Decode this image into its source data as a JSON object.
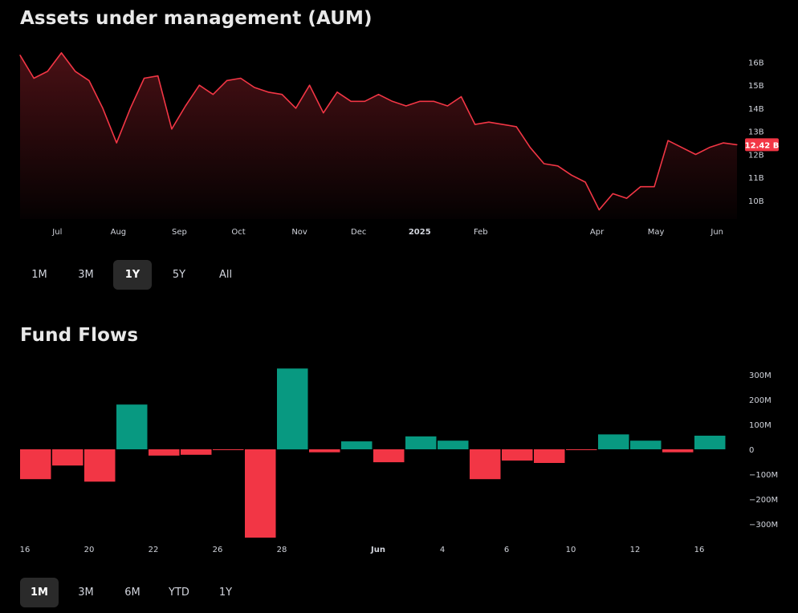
{
  "aum": {
    "title": "Assets under management (AUM)",
    "ranges": [
      "1M",
      "3M",
      "1Y",
      "5Y",
      "All"
    ],
    "active_range": "1Y"
  },
  "flows": {
    "title": "Fund Flows",
    "ranges": [
      "1M",
      "3M",
      "6M",
      "YTD",
      "1Y"
    ],
    "active_range": "1M"
  },
  "colors": {
    "line": "#f23645",
    "positive": "#089981",
    "negative": "#f23645",
    "text": "#d1d4dc",
    "background": "#000000"
  },
  "chart_data": [
    {
      "type": "area",
      "title": "Assets under management (AUM)",
      "unit": "B",
      "ylim": [
        9.2,
        16.5
      ],
      "y_ticks": [
        10,
        11,
        12,
        13,
        14,
        15,
        16
      ],
      "y_tick_labels": [
        "10B",
        "11B",
        "12B",
        "13B",
        "14B",
        "15B",
        "16B"
      ],
      "x_tick_labels": [
        "Jul",
        "Aug",
        "Sep",
        "Oct",
        "Nov",
        "Dec",
        "2025",
        "Feb",
        "Apr",
        "May",
        "Jun"
      ],
      "last_value_label": "12.42 B",
      "last_value": 12.42,
      "series": [
        {
          "x": [
            "2024-06-17",
            "2024-06-24",
            "2024-07-01",
            "2024-07-08",
            "2024-07-15",
            "2024-07-22",
            "2024-07-29",
            "2024-08-05",
            "2024-08-12",
            "2024-08-19",
            "2024-08-26",
            "2024-09-02",
            "2024-09-09",
            "2024-09-16",
            "2024-09-23",
            "2024-09-30",
            "2024-10-07",
            "2024-10-14",
            "2024-10-21",
            "2024-10-28",
            "2024-11-04",
            "2024-11-11",
            "2024-11-18",
            "2024-11-25",
            "2024-12-02",
            "2024-12-09",
            "2024-12-16",
            "2024-12-23",
            "2024-12-30",
            "2025-01-06",
            "2025-01-13",
            "2025-01-20",
            "2025-01-27",
            "2025-02-03",
            "2025-02-10",
            "2025-02-17",
            "2025-02-24",
            "2025-03-03",
            "2025-03-10",
            "2025-03-17",
            "2025-03-24",
            "2025-03-31",
            "2025-04-07",
            "2025-04-14",
            "2025-04-21",
            "2025-04-28",
            "2025-05-05",
            "2025-05-12",
            "2025-05-19",
            "2025-05-26",
            "2025-06-02",
            "2025-06-09",
            "2025-06-16"
          ],
          "values": [
            16.3,
            15.3,
            15.6,
            16.4,
            15.6,
            15.2,
            14.0,
            12.5,
            14.0,
            15.3,
            15.4,
            13.1,
            14.1,
            15.0,
            14.6,
            15.2,
            15.3,
            14.9,
            14.7,
            14.6,
            14.0,
            15.0,
            13.8,
            14.7,
            14.3,
            14.3,
            14.6,
            14.3,
            14.1,
            14.3,
            14.3,
            14.1,
            14.5,
            13.3,
            13.4,
            13.3,
            13.2,
            12.3,
            11.6,
            11.5,
            11.1,
            10.8,
            9.6,
            10.3,
            10.1,
            10.6,
            10.6,
            12.6,
            12.3,
            12.0,
            12.3,
            12.5,
            12.42
          ]
        }
      ]
    },
    {
      "type": "bar",
      "title": "Fund Flows",
      "unit": "M",
      "ylim": [
        -355,
        330
      ],
      "y_ticks": [
        300,
        200,
        100,
        0,
        -100,
        -200,
        -300
      ],
      "y_tick_labels": [
        "300M",
        "200M",
        "100M",
        "0",
        "−100M",
        "−200M",
        "−300M"
      ],
      "x_tick_labels": [
        {
          "label": "16",
          "index": 0
        },
        {
          "label": "20",
          "index": 2
        },
        {
          "label": "22",
          "index": 4
        },
        {
          "label": "26",
          "index": 6
        },
        {
          "label": "28",
          "index": 8
        },
        {
          "label": "Jun",
          "index": 11
        },
        {
          "label": "4",
          "index": 13
        },
        {
          "label": "6",
          "index": 15
        },
        {
          "label": "10",
          "index": 17
        },
        {
          "label": "12",
          "index": 19
        },
        {
          "label": "16",
          "index": 21
        }
      ],
      "series": [
        {
          "values": [
            -120,
            -65,
            -130,
            180,
            -25,
            -22,
            -2,
            -355,
            325,
            -12,
            32,
            -52,
            52,
            35,
            -120,
            -45,
            -55,
            -2,
            60,
            35,
            -12,
            55
          ]
        }
      ]
    }
  ]
}
